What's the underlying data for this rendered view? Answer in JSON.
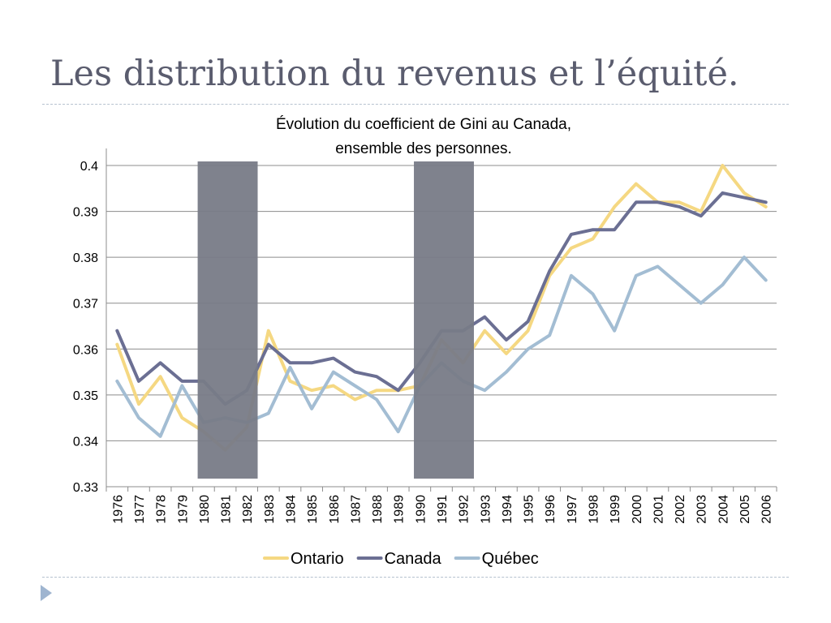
{
  "slide": {
    "title": "Les distribution du revenus et l’équité."
  },
  "chart_data": {
    "type": "line",
    "title": "Évolution du coefficient de Gini au Canada,",
    "subtitle": "ensemble des personnes.",
    "xlabel": "",
    "ylabel": "",
    "ylim": [
      0.33,
      0.4
    ],
    "yticks": [
      "0.33",
      "0.34",
      "0.35",
      "0.36",
      "0.37",
      "0.38",
      "0.39",
      "0.4"
    ],
    "grid": true,
    "legend_position": "bottom",
    "x": [
      "1976",
      "1977",
      "1978",
      "1979",
      "1980",
      "1981",
      "1982",
      "1983",
      "1984",
      "1985",
      "1986",
      "1987",
      "1988",
      "1989",
      "1990",
      "1991",
      "1992",
      "1993",
      "1994",
      "1995",
      "1996",
      "1997",
      "1998",
      "1999",
      "2000",
      "2001",
      "2002",
      "2003",
      "2004",
      "2005",
      "2006"
    ],
    "series": [
      {
        "name": "Ontario",
        "color": "#f5d882",
        "values": [
          0.361,
          0.348,
          0.354,
          0.345,
          0.342,
          0.338,
          0.343,
          0.364,
          0.353,
          0.351,
          0.352,
          0.349,
          0.351,
          0.351,
          0.352,
          0.362,
          0.357,
          0.364,
          0.359,
          0.364,
          0.376,
          0.382,
          0.384,
          0.391,
          0.396,
          0.392,
          0.392,
          0.39,
          0.4,
          0.394,
          0.391
        ]
      },
      {
        "name": "Canada",
        "color": "#6b6f93",
        "values": [
          0.364,
          0.353,
          0.357,
          0.353,
          0.353,
          0.348,
          0.351,
          0.361,
          0.357,
          0.357,
          0.358,
          0.355,
          0.354,
          0.351,
          0.357,
          0.364,
          0.364,
          0.367,
          0.362,
          0.366,
          0.377,
          0.385,
          0.386,
          0.386,
          0.392,
          0.392,
          0.391,
          0.389,
          0.394,
          0.393,
          0.392
        ]
      },
      {
        "name": "Québec",
        "color": "#a3bdd3",
        "values": [
          0.353,
          0.345,
          0.341,
          0.352,
          0.344,
          0.345,
          0.344,
          0.346,
          0.356,
          0.347,
          0.355,
          0.352,
          0.349,
          0.342,
          0.352,
          0.357,
          0.353,
          0.351,
          0.355,
          0.36,
          0.363,
          0.376,
          0.372,
          0.364,
          0.376,
          0.378,
          0.374,
          0.37,
          0.374,
          0.38,
          0.375
        ]
      }
    ],
    "shaded_periods": [
      {
        "from": "1980",
        "to": "1982",
        "color": "#787b87"
      },
      {
        "from": "1990",
        "to": "1992",
        "color": "#787b87"
      }
    ]
  }
}
